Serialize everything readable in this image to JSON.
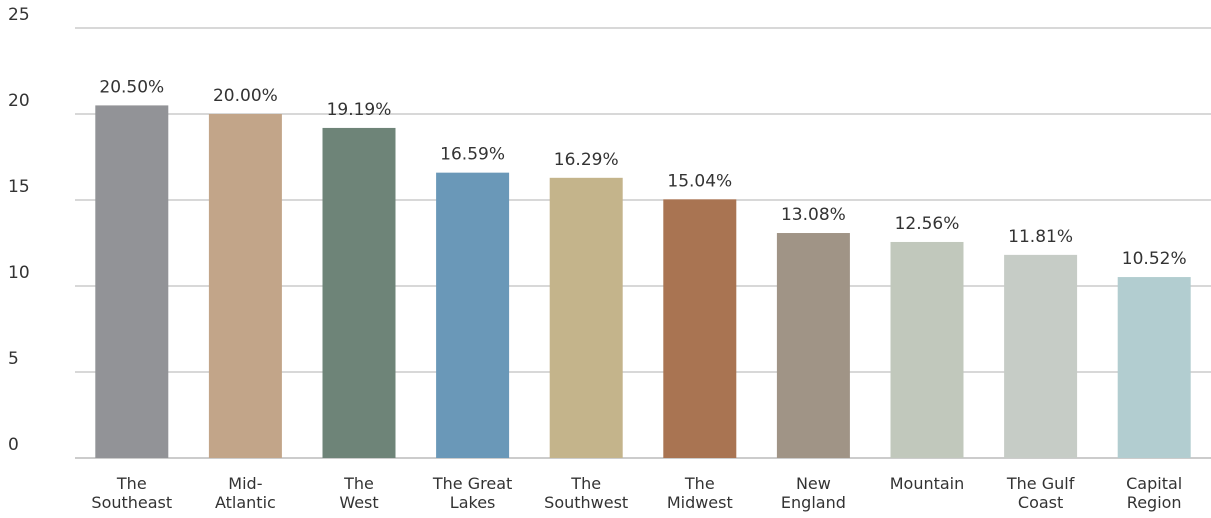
{
  "chart_data": {
    "type": "bar",
    "categories": [
      "The\nSoutheast",
      "Mid-\nAtlantic",
      "The\nWest",
      "The  Great\nLakes",
      "The\nSouthwest",
      "The\nMidwest",
      "New\nEngland",
      "Mountain",
      "The Gulf\nCoast",
      "Capital\nRegion"
    ],
    "values": [
      20.5,
      20.0,
      19.19,
      16.59,
      16.29,
      15.04,
      13.08,
      12.56,
      11.81,
      10.52
    ],
    "value_labels": [
      "20.50%",
      "20.00%",
      "19.19%",
      "16.59%",
      "16.29%",
      "15.04%",
      "13.08%",
      "12.56%",
      "11.81%",
      "10.52%"
    ],
    "colors": [
      "#929397",
      "#c2a589",
      "#6e8478",
      "#6a98b8",
      "#c4b48b",
      "#a97452",
      "#a09486",
      "#c1c8bc",
      "#c6ccc6",
      "#b2cdd0"
    ],
    "ylim": [
      0,
      25
    ],
    "yticks": [
      0,
      5,
      10,
      15,
      20,
      25
    ],
    "grid": true
  }
}
